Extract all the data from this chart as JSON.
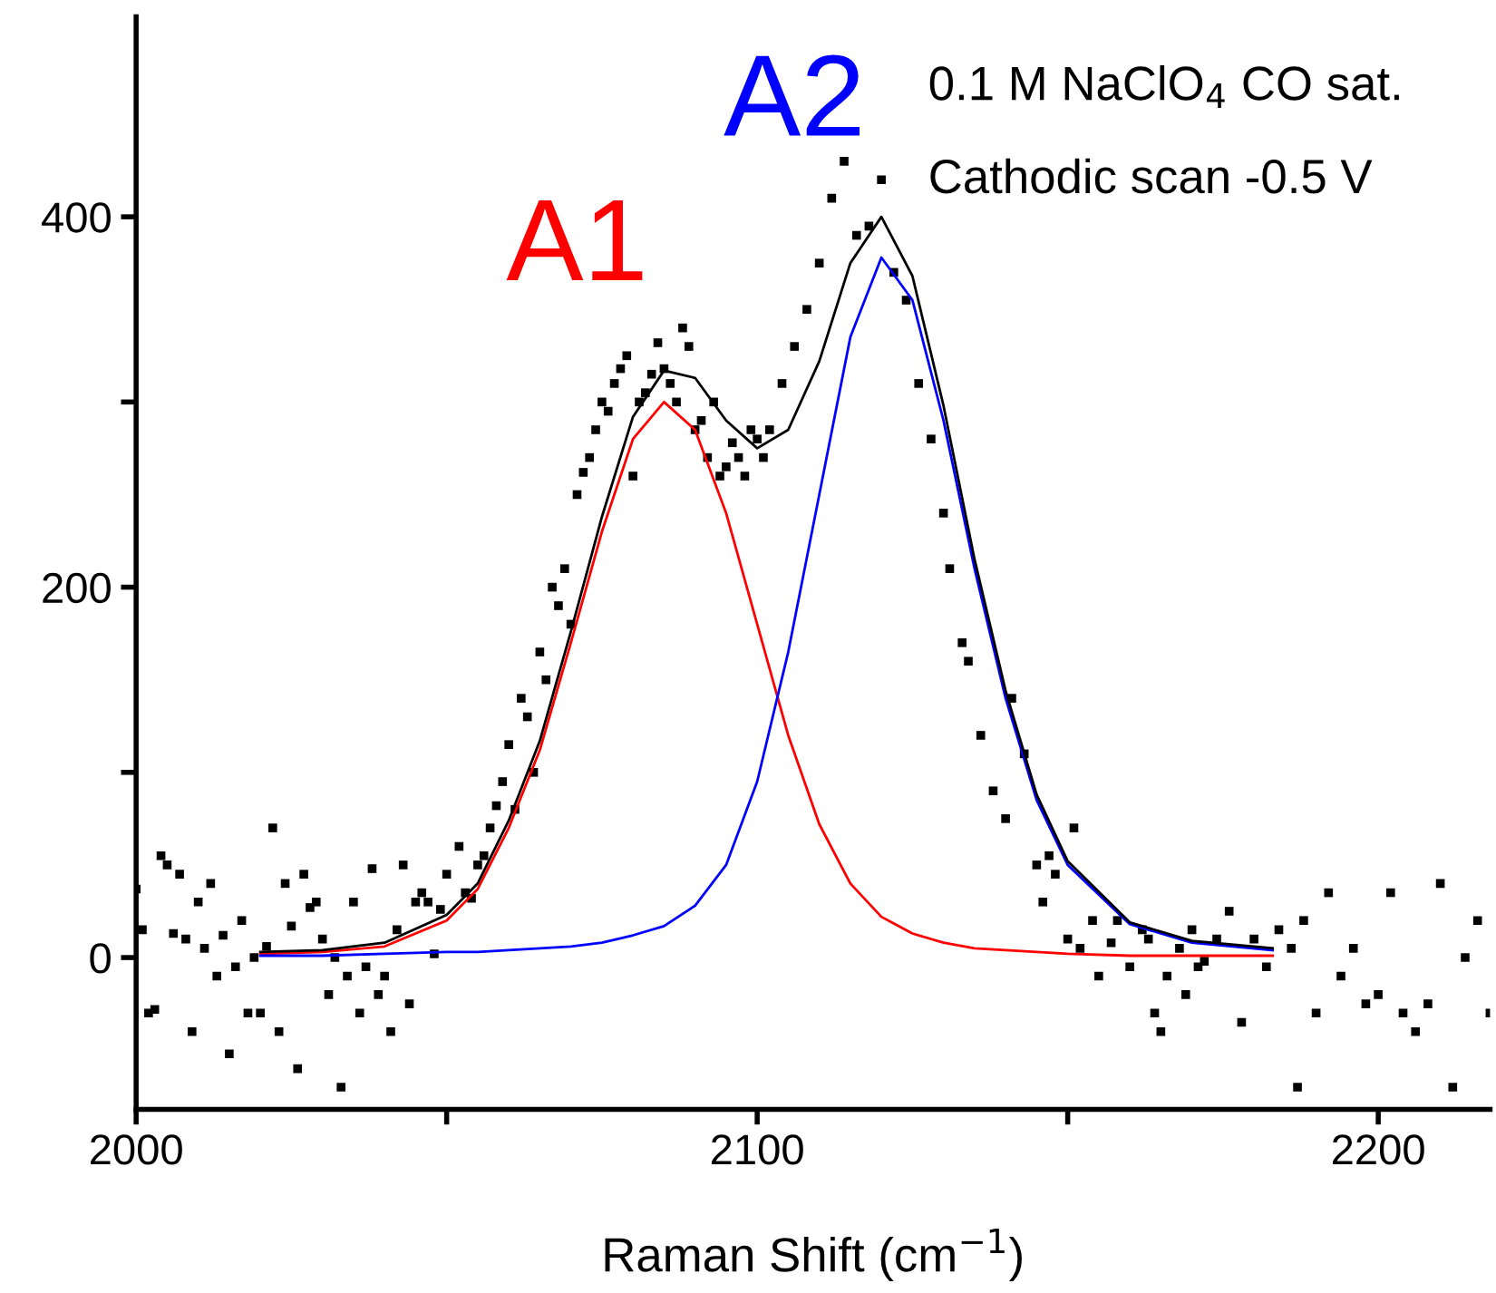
{
  "chart_data": {
    "type": "line",
    "xlabel": "Raman Shift (cm$^{−1}$)",
    "xlim": [
      2000,
      2218
    ],
    "ylim": [
      -82,
      508
    ],
    "xticks": [
      2000,
      {
        "value": 2050,
        "label": null
      },
      2100,
      {
        "value": 2150,
        "label": null
      },
      2200
    ],
    "yticks": [
      0,
      {
        "value": 100,
        "label": null
      },
      200,
      {
        "value": 300,
        "label": null
      },
      400
    ],
    "grid": false,
    "legend": false,
    "line_style": "solid",
    "annotations": [
      "0.1 M NaClO$_{4}$ CO sat.",
      "Cathodic scan -0.5 V"
    ],
    "series": [
      {
        "type": "scatter",
        "marker": "square",
        "color": "#000000",
        "x": [
          2000,
          2001,
          2002,
          2003,
          2004,
          2005,
          2006,
          2007,
          2008,
          2009,
          2010,
          2011,
          2012,
          2013,
          2014,
          2015,
          2016,
          2017,
          2018,
          2019,
          2020,
          2021,
          2022,
          2023,
          2024,
          2025,
          2026,
          2027,
          2028,
          2029,
          2030,
          2031,
          2032,
          2033,
          2034,
          2035,
          2036,
          2037,
          2038,
          2039,
          2040,
          2041,
          2042,
          2043,
          2044,
          2045,
          2046,
          2047,
          2048,
          2049,
          2050,
          2052,
          2053,
          2054,
          2055,
          2056,
          2057,
          2058,
          2059,
          2060,
          2061,
          2062,
          2063,
          2064,
          2065,
          2066,
          2067,
          2068,
          2069,
          2070,
          2071,
          2072,
          2073,
          2074,
          2075,
          2076,
          2077,
          2078,
          2079,
          2080,
          2081,
          2082,
          2083,
          2084,
          2085,
          2086,
          2087,
          2088,
          2089,
          2090,
          2091,
          2092,
          2093,
          2094,
          2095,
          2096,
          2097,
          2098,
          2099,
          2100,
          2101,
          2102,
          2104,
          2106,
          2108,
          2110,
          2112,
          2114,
          2116,
          2118,
          2120,
          2122,
          2124,
          2126,
          2128,
          2130,
          2131,
          2133,
          2134,
          2136,
          2138,
          2140,
          2141,
          2143,
          2145,
          2146,
          2147,
          2148,
          2150,
          2151,
          2152,
          2154,
          2155,
          2157,
          2158,
          2160,
          2162,
          2163,
          2164,
          2165,
          2166,
          2168,
          2169,
          2170,
          2171,
          2172,
          2174,
          2176,
          2178,
          2180,
          2182,
          2184,
          2186,
          2187,
          2188,
          2190,
          2192,
          2194,
          2196,
          2198,
          2200,
          2202,
          2204,
          2206,
          2208,
          2210,
          2212,
          2214,
          2216,
          2218
        ],
        "values": [
          37,
          15,
          -30,
          -28,
          55,
          50,
          13,
          45,
          10,
          -40,
          30,
          5,
          40,
          -10,
          12,
          -52,
          -5,
          20,
          -30,
          0,
          -30,
          6,
          70,
          -40,
          40,
          17,
          -60,
          45,
          27,
          30,
          10,
          -20,
          0,
          -70,
          -10,
          30,
          -30,
          -5,
          48,
          -20,
          -10,
          -40,
          15,
          50,
          -25,
          30,
          35,
          30,
          2,
          26,
          45,
          60,
          35,
          32,
          50,
          55,
          70,
          82,
          95,
          115,
          80,
          140,
          130,
          100,
          165,
          150,
          200,
          190,
          210,
          180,
          250,
          262,
          270,
          285,
          300,
          295,
          310,
          318,
          325,
          260,
          300,
          305,
          315,
          332,
          318,
          310,
          300,
          340,
          330,
          285,
          290,
          270,
          300,
          260,
          265,
          278,
          270,
          260,
          285,
          280,
          270,
          285,
          310,
          330,
          350,
          375,
          410,
          430,
          390,
          395,
          420,
          370,
          355,
          310,
          280,
          240,
          210,
          170,
          160,
          120,
          90,
          75,
          140,
          110,
          50,
          30,
          55,
          45,
          10,
          70,
          5,
          20,
          -10,
          8,
          20,
          -5,
          15,
          10,
          -30,
          -40,
          -10,
          5,
          -20,
          15,
          -5,
          -2,
          10,
          25,
          -35,
          10,
          -5,
          15,
          5,
          -70,
          20,
          -30,
          35,
          -10,
          5,
          -25,
          -20,
          35,
          -30,
          -40,
          -25,
          40,
          -70,
          0,
          20,
          -30
        ]
      },
      {
        "name": "A1",
        "color": "#ff0000",
        "x": [
          2020,
          2030,
          2040,
          2050,
          2055,
          2060,
          2065,
          2070,
          2075,
          2080,
          2085,
          2090,
          2095,
          2100,
          2105,
          2110,
          2115,
          2120,
          2125,
          2130,
          2135,
          2140,
          2145,
          2150,
          2160,
          2170,
          2183
        ],
        "values": [
          2,
          3,
          6,
          20,
          37,
          70,
          112,
          170,
          230,
          280,
          300,
          285,
          240,
          180,
          120,
          72,
          40,
          22,
          13,
          8,
          5,
          4,
          3,
          2,
          1,
          1,
          1
        ]
      },
      {
        "name": "A2",
        "color": "#0000ff",
        "x": [
          2020,
          2030,
          2040,
          2050,
          2055,
          2060,
          2065,
          2070,
          2075,
          2080,
          2085,
          2090,
          2095,
          2100,
          2105,
          2110,
          2115,
          2120,
          2125,
          2130,
          2135,
          2140,
          2145,
          2150,
          2160,
          2170,
          2183
        ],
        "values": [
          1,
          1,
          2,
          3,
          3,
          4,
          5,
          6,
          8,
          12,
          17,
          28,
          50,
          95,
          165,
          250,
          335,
          378,
          355,
          290,
          210,
          140,
          85,
          50,
          18,
          8,
          4
        ]
      },
      {
        "color": "#000000",
        "x": [
          2020,
          2030,
          2040,
          2050,
          2055,
          2060,
          2065,
          2070,
          2075,
          2080,
          2085,
          2090,
          2095,
          2100,
          2105,
          2110,
          2115,
          2120,
          2125,
          2130,
          2135,
          2140,
          2145,
          2150,
          2160,
          2170,
          2183
        ],
        "values": [
          3,
          4,
          8,
          23,
          40,
          74,
          117,
          176,
          238,
          292,
          317,
          313,
          290,
          275,
          285,
          322,
          375,
          400,
          368,
          298,
          215,
          144,
          88,
          52,
          19,
          9,
          5
        ]
      }
    ]
  }
}
